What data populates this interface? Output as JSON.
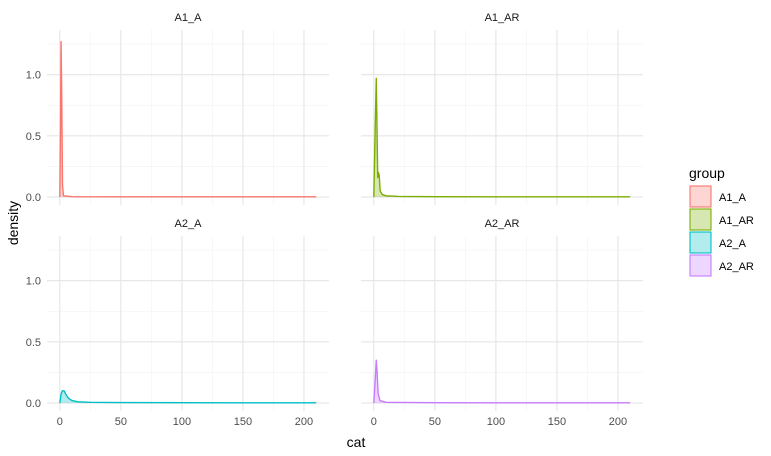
{
  "chart_data": {
    "type": "area",
    "xlabel": "cat",
    "ylabel": "density",
    "xlim": [
      0,
      210
    ],
    "ylim": [
      0,
      1.3
    ],
    "x_ticks": [
      "0",
      "50",
      "100",
      "150",
      "200"
    ],
    "y_ticks": [
      "0.0",
      "0.5",
      "1.0"
    ],
    "grid": true,
    "legend": {
      "title": "group",
      "placement": "right",
      "entries": [
        "A1_A",
        "A1_AR",
        "A2_A",
        "A2_AR"
      ]
    },
    "panels": [
      {
        "title": "A1_A",
        "series": "A1_A",
        "color": "#F8766D",
        "points": [
          [
            0,
            0.0
          ],
          [
            0.6,
            0.6
          ],
          [
            1.0,
            1.27
          ],
          [
            1.5,
            0.9
          ],
          [
            2.2,
            0.1
          ],
          [
            3,
            0.01
          ],
          [
            10,
            0.003
          ],
          [
            50,
            0.002
          ],
          [
            100,
            0.002
          ],
          [
            150,
            0.002
          ],
          [
            210,
            0.002
          ]
        ]
      },
      {
        "title": "A1_AR",
        "series": "A1_AR",
        "color": "#7CAE00",
        "points": [
          [
            0,
            0.0
          ],
          [
            1.2,
            0.6
          ],
          [
            2.0,
            0.97
          ],
          [
            2.7,
            0.5
          ],
          [
            3.2,
            0.16
          ],
          [
            3.8,
            0.2
          ],
          [
            4.4,
            0.18
          ],
          [
            5.2,
            0.05
          ],
          [
            7,
            0.02
          ],
          [
            10,
            0.01
          ],
          [
            20,
            0.005
          ],
          [
            50,
            0.003
          ],
          [
            100,
            0.002
          ],
          [
            150,
            0.002
          ],
          [
            210,
            0.002
          ]
        ]
      },
      {
        "title": "A2_A",
        "series": "A2_A",
        "color": "#00BFC4",
        "points": [
          [
            0,
            0.0
          ],
          [
            1,
            0.07
          ],
          [
            2,
            0.1
          ],
          [
            3.5,
            0.1
          ],
          [
            5,
            0.07
          ],
          [
            7,
            0.04
          ],
          [
            10,
            0.02
          ],
          [
            15,
            0.01
          ],
          [
            25,
            0.006
          ],
          [
            50,
            0.004
          ],
          [
            100,
            0.003
          ],
          [
            150,
            0.002
          ],
          [
            210,
            0.002
          ]
        ]
      },
      {
        "title": "A2_AR",
        "series": "A2_AR",
        "color": "#C77CFF",
        "points": [
          [
            0,
            0.0
          ],
          [
            1.2,
            0.2
          ],
          [
            2.0,
            0.35
          ],
          [
            2.7,
            0.25
          ],
          [
            3.5,
            0.08
          ],
          [
            5,
            0.02
          ],
          [
            10,
            0.006
          ],
          [
            50,
            0.003
          ],
          [
            100,
            0.002
          ],
          [
            150,
            0.002
          ],
          [
            210,
            0.002
          ]
        ]
      }
    ]
  }
}
